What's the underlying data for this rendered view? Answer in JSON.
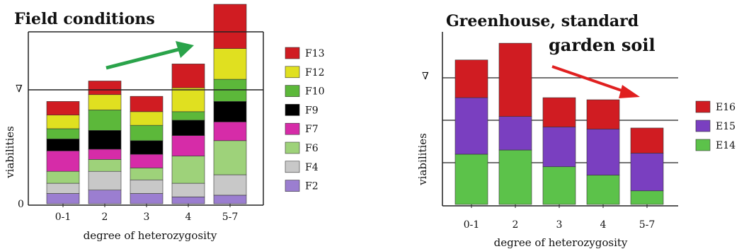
{
  "chart_data": [
    {
      "type": "bar",
      "stacked": true,
      "title": "Field conditions",
      "xlabel": "degree of heterozygosity",
      "ylabel": "viabilities",
      "y_ticks": [
        "0",
        "∇"
      ],
      "categories": [
        "0-1",
        "2",
        "3",
        "4",
        "5-7"
      ],
      "legend_position": "right",
      "grid": "horizontal line at ∇",
      "series": [
        {
          "name": "F2",
          "color": "#9b7ed0",
          "values": [
            0.6,
            0.8,
            0.6,
            0.4,
            0.5
          ]
        },
        {
          "name": "F4",
          "color": "#c8c8c8",
          "values": [
            0.6,
            1.1,
            0.8,
            0.8,
            1.2
          ]
        },
        {
          "name": "F6",
          "color": "#9ed27a",
          "values": [
            0.7,
            0.7,
            0.7,
            1.6,
            2.0
          ]
        },
        {
          "name": "F7",
          "color": "#d62ca8",
          "values": [
            1.2,
            0.6,
            0.8,
            1.2,
            1.1
          ]
        },
        {
          "name": "F9",
          "color": "#000000",
          "values": [
            0.7,
            1.1,
            0.8,
            0.9,
            1.2
          ]
        },
        {
          "name": "F10",
          "color": "#5cb83a",
          "values": [
            0.6,
            1.2,
            0.9,
            0.5,
            1.3
          ]
        },
        {
          "name": "F12",
          "color": "#e0e020",
          "values": [
            0.8,
            0.9,
            0.8,
            1.4,
            1.8
          ]
        },
        {
          "name": "F13",
          "color": "#d01c22",
          "values": [
            0.8,
            0.8,
            0.9,
            1.4,
            2.6
          ]
        }
      ],
      "annotations": [
        {
          "type": "arrow",
          "direction": "up",
          "color": "#2aa34a"
        }
      ]
    },
    {
      "type": "bar",
      "stacked": true,
      "title": "Greenhouse, standard",
      "subtitle": "garden soil",
      "xlabel": "degree of heterozygosity",
      "ylabel": "viabilities",
      "y_ticks": [
        "∇"
      ],
      "categories": [
        "0-1",
        "2",
        "3",
        "4",
        "5-7"
      ],
      "legend_position": "right",
      "grid": "horizontal lines",
      "series": [
        {
          "name": "E14",
          "color": "#5cc24a",
          "values": [
            2.4,
            2.6,
            1.8,
            1.4,
            0.65
          ]
        },
        {
          "name": "E15",
          "color": "#7a3fc0",
          "values": [
            2.7,
            1.6,
            1.9,
            2.2,
            1.8
          ]
        },
        {
          "name": "E16",
          "color": "#d01c22",
          "values": [
            1.8,
            3.5,
            1.4,
            1.4,
            1.2
          ]
        }
      ],
      "annotations": [
        {
          "type": "arrow",
          "direction": "down",
          "color": "#e02020"
        }
      ]
    }
  ]
}
